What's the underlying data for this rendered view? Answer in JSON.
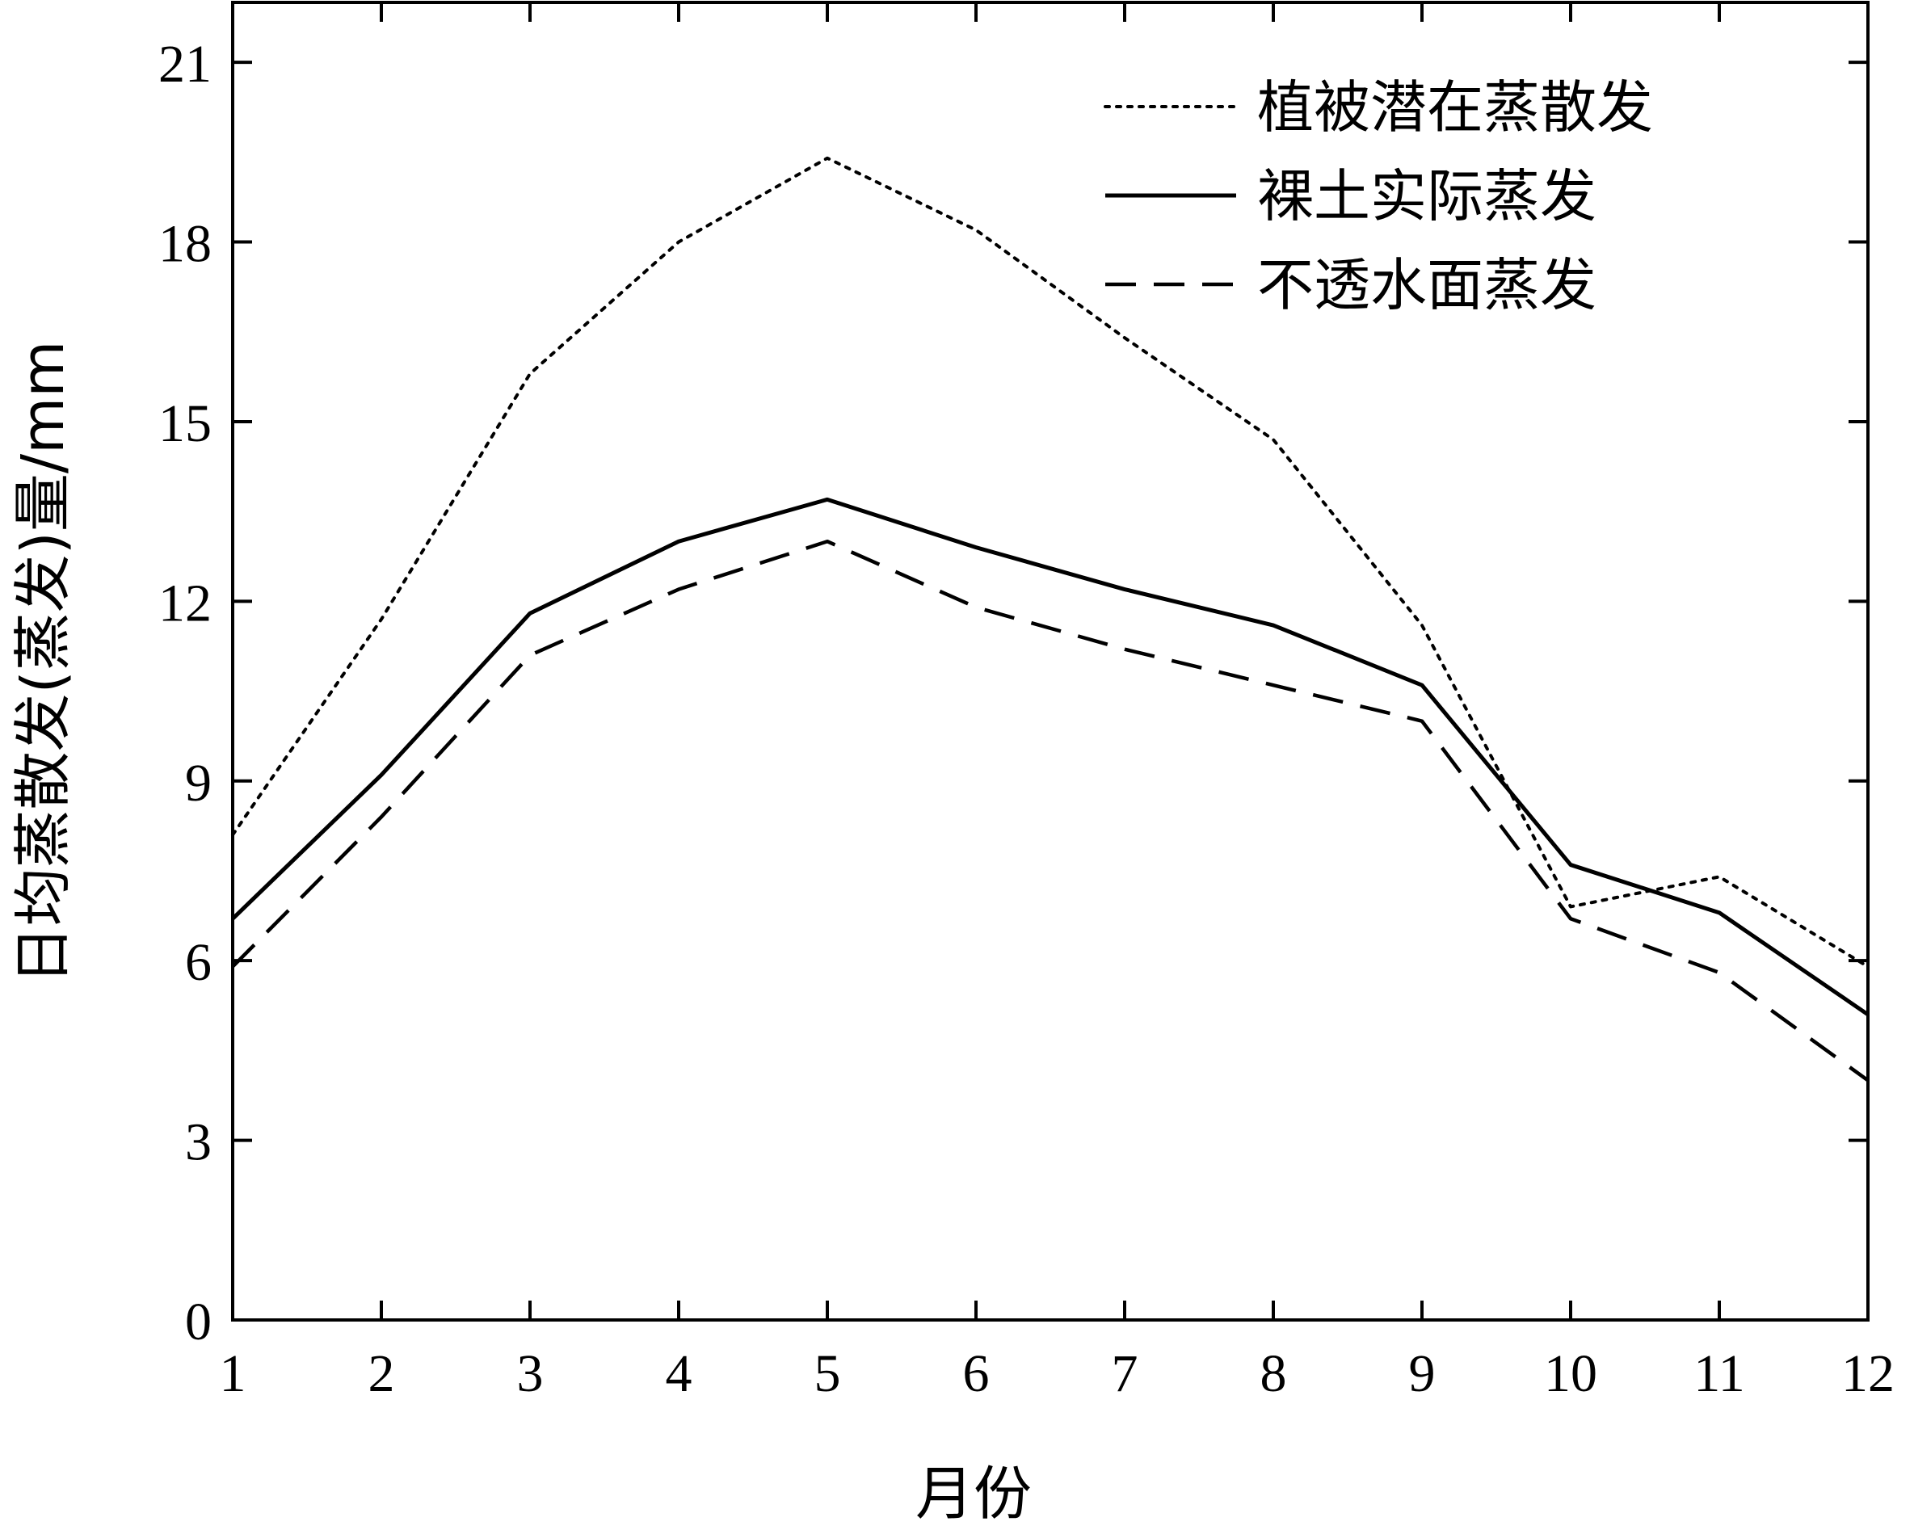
{
  "chart_data": {
    "type": "line",
    "xlabel": "月份",
    "ylabel": "日均蒸散发(蒸发)量/mm",
    "xlim": [
      1,
      12
    ],
    "ylim": [
      0,
      22
    ],
    "x_ticks": [
      1,
      2,
      3,
      4,
      5,
      6,
      7,
      8,
      9,
      10,
      11,
      12
    ],
    "y_ticks": [
      0,
      3,
      6,
      9,
      12,
      15,
      18,
      21
    ],
    "grid": false,
    "legend_position": "top-right",
    "series": [
      {
        "name": "植被潜在蒸散发",
        "style": "dotted",
        "color": "#000000",
        "x": [
          1,
          2,
          3,
          4,
          5,
          6,
          7,
          8,
          9,
          10,
          11,
          12
        ],
        "y": [
          8.1,
          11.7,
          15.8,
          18.0,
          19.4,
          18.2,
          16.4,
          14.7,
          11.6,
          6.9,
          7.4,
          5.9
        ]
      },
      {
        "name": "裸土实际蒸发",
        "style": "solid",
        "color": "#000000",
        "x": [
          1,
          2,
          3,
          4,
          5,
          6,
          7,
          8,
          9,
          10,
          11,
          12
        ],
        "y": [
          6.7,
          9.1,
          11.8,
          13.0,
          13.7,
          12.9,
          12.2,
          11.6,
          10.6,
          7.6,
          6.8,
          5.1
        ]
      },
      {
        "name": "不透水面蒸发",
        "style": "dashed",
        "color": "#000000",
        "x": [
          1,
          2,
          3,
          4,
          5,
          6,
          7,
          8,
          9,
          10,
          11,
          12
        ],
        "y": [
          5.9,
          8.4,
          11.1,
          12.2,
          13.0,
          11.9,
          11.2,
          10.6,
          10.0,
          6.7,
          5.8,
          4.0
        ]
      }
    ]
  }
}
